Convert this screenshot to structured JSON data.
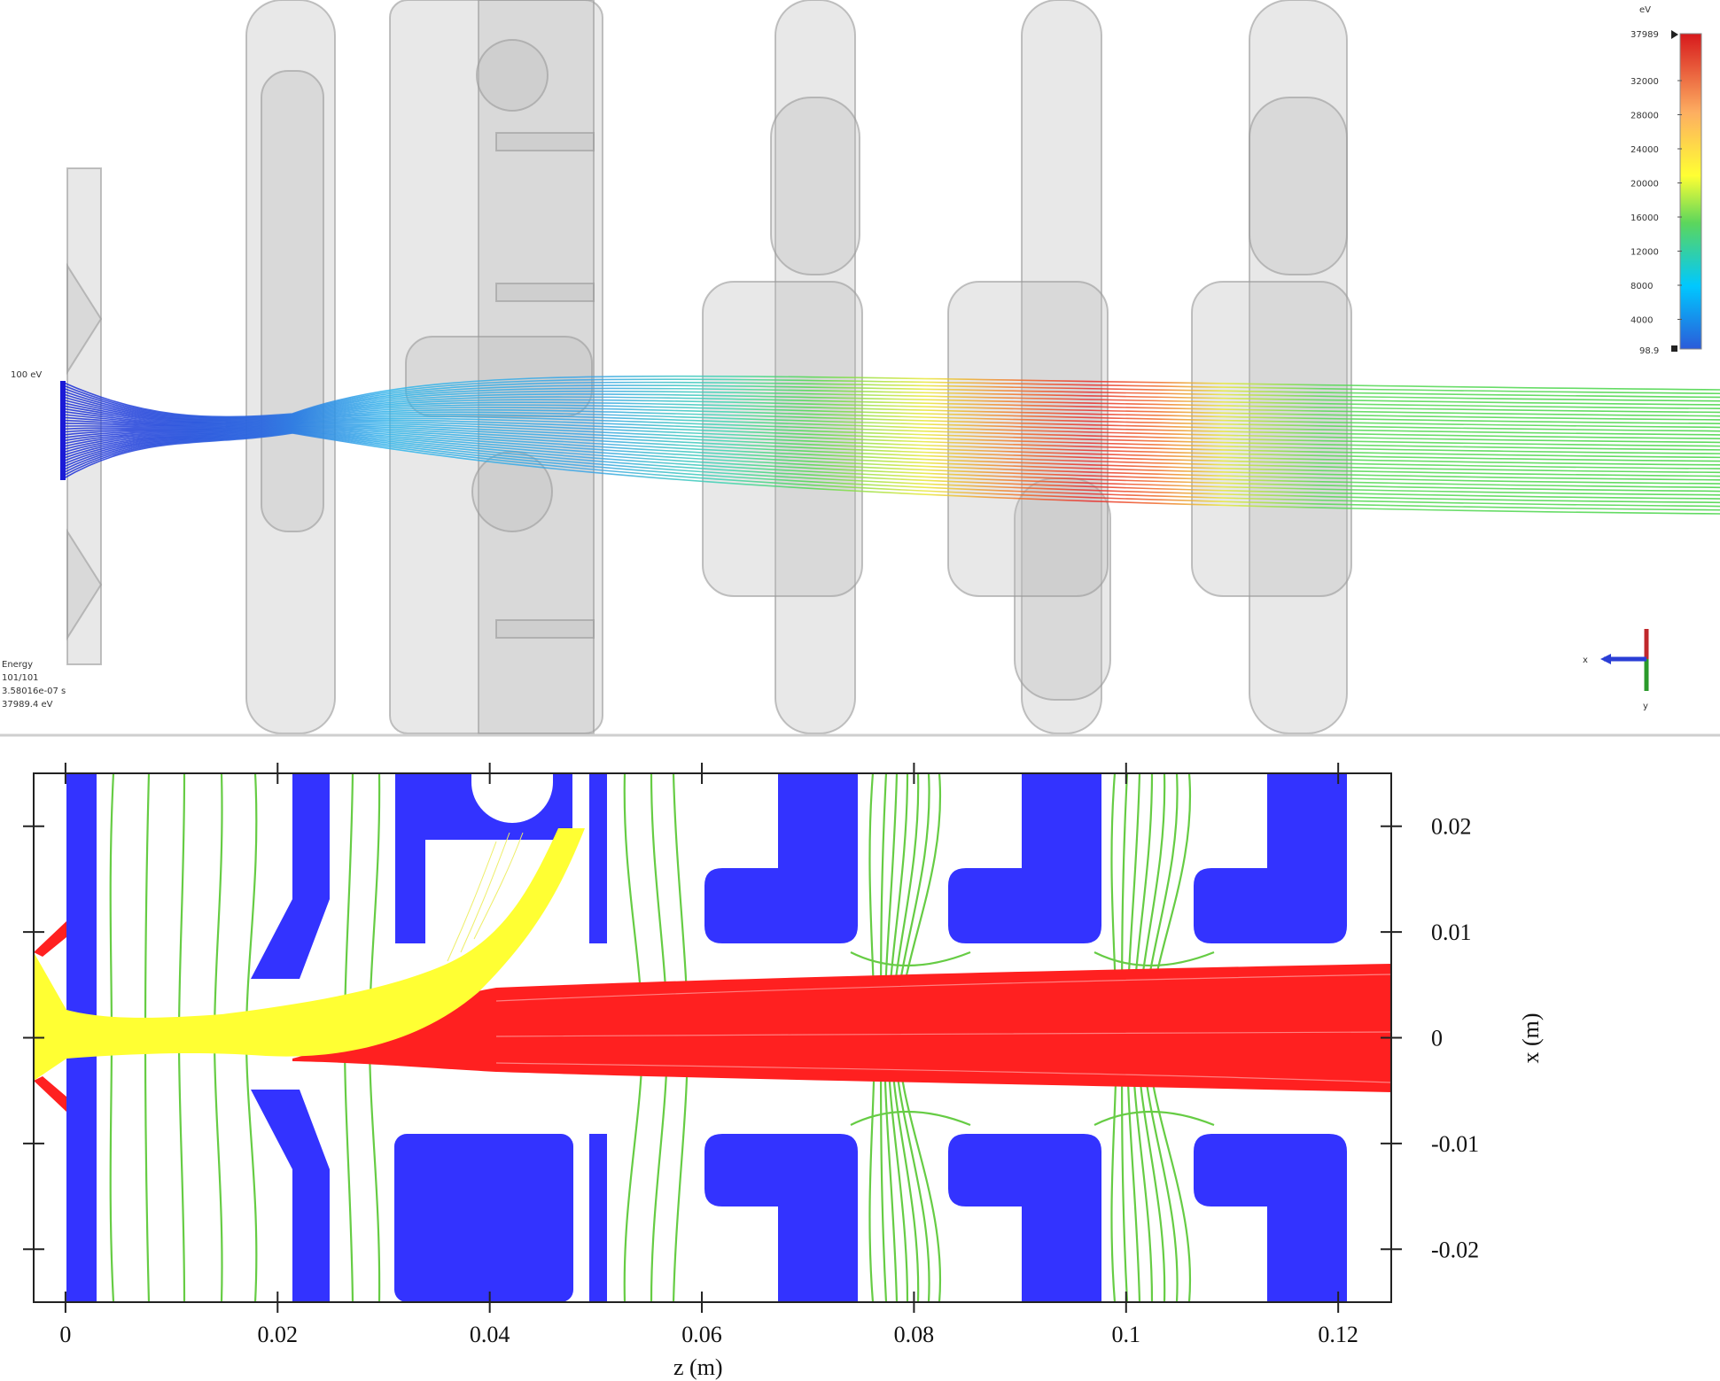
{
  "top_view": {
    "colorbar": {
      "unit": "eV",
      "max_label": "37989",
      "ticks": [
        "32000",
        "28000",
        "24000",
        "20000",
        "16000",
        "12000",
        "8000",
        "4000"
      ],
      "min_label": "98.9",
      "colors": [
        "#d7191c",
        "#fdae61",
        "#ffff33",
        "#5cd65c",
        "#00c8ff",
        "#2b5bd9"
      ]
    },
    "source_label": "100 eV",
    "info_lines": [
      "Energy",
      "101/101",
      "3.58016e-07 s",
      "37989.4 eV"
    ],
    "axes_widget": {
      "x_label": "x",
      "y_label": "y"
    }
  },
  "chart_data": {
    "type": "trajectory-plot",
    "xlabel": "z (m)",
    "ylabel": "x (m)",
    "xlim": [
      -0.003,
      0.125
    ],
    "ylim": [
      -0.025,
      0.025
    ],
    "x_ticks": [
      0,
      0.02,
      0.04,
      0.06,
      0.08,
      0.1,
      0.12
    ],
    "x_tick_labels": [
      "0",
      "0.02",
      "0.04",
      "0.06",
      "0.08",
      "0.1",
      "0.12"
    ],
    "y_ticks": [
      0.02,
      0.01,
      0,
      -0.01,
      -0.02
    ],
    "y_tick_labels": [
      "0.02",
      "0.01",
      "0",
      "-0.01",
      "-0.02"
    ],
    "series": [
      {
        "name": "electrodes",
        "color": "#3333ff"
      },
      {
        "name": "equipotential-lines",
        "color": "#66cc44"
      },
      {
        "name": "initial-beam",
        "color": "#ffff33"
      },
      {
        "name": "accelerated-beam",
        "color": "#ff2020"
      }
    ]
  }
}
